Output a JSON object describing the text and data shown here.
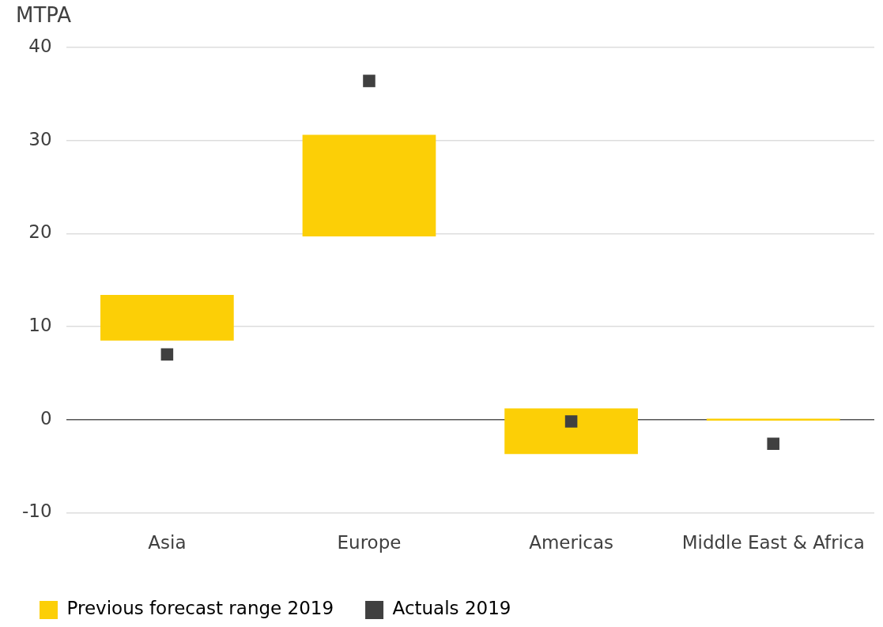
{
  "chart_data": {
    "type": "bar",
    "ylabel": "MTPA",
    "categories": [
      "Asia",
      "Europe",
      "Americas",
      "Middle East & Africa"
    ],
    "series": [
      {
        "name": "Previous forecast range 2019",
        "color": "#fccf06",
        "base": [
          8.5,
          19.7,
          -3.7,
          -0.1
        ],
        "values": [
          4.9,
          10.9,
          4.9,
          0.2
        ]
      },
      {
        "name": "Actuals 2019",
        "type": "scatter",
        "color": "#404040",
        "marker": "square",
        "values": [
          7.0,
          36.4,
          -0.2,
          -2.6
        ]
      }
    ],
    "ylim": [
      -10,
      40
    ],
    "yticks": [
      -10,
      0,
      10,
      20,
      30,
      40
    ],
    "grid": "y",
    "legend": "bottom left"
  }
}
